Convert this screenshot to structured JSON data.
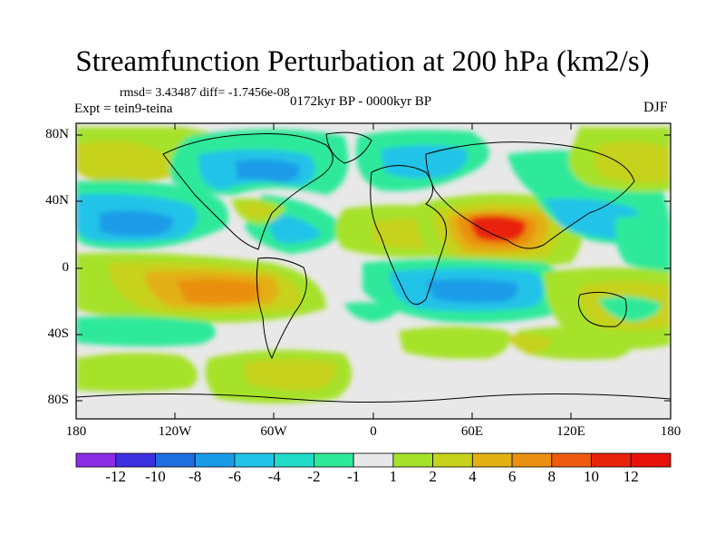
{
  "title": "Streamfunction Perturbation at 200 hPa (km2/s)",
  "stats": "rmsd= 3.43487 diff= -1.7456e-08",
  "expt": "Expt = tein9-teina",
  "period": "0172kyr BP - 0000kyr BP",
  "season": "DJF",
  "lat_labels": [
    "80N",
    "40N",
    "0",
    "40S",
    "80S"
  ],
  "lon_labels": [
    "180",
    "120W",
    "60W",
    "0",
    "60E",
    "120E",
    "180"
  ],
  "colorbar": {
    "labels": [
      "-12",
      "-10",
      "-8",
      "-6",
      "-4",
      "-2",
      "-1",
      "1",
      "2",
      "4",
      "6",
      "8",
      "10",
      "12"
    ],
    "colors": [
      "#8b2ee6",
      "#3c2fe0",
      "#1f6ee0",
      "#1a9be8",
      "#22c3e8",
      "#21dcc9",
      "#2ee99a",
      "#e8e8e8",
      "#a6e22c",
      "#c6d21c",
      "#e2b013",
      "#ea8f11",
      "#ee5a10",
      "#e8230c",
      "#e8120a"
    ]
  },
  "field_colors": {
    "neutral": "#e8e8e8",
    "neg_weak": "#2ee99a",
    "neg_mid": "#22c3e8",
    "neg_strong": "#1a9be8",
    "pos_weak": "#a6e22c",
    "pos_mid": "#c6d21c",
    "pos_strong": "#e2b013",
    "pos_high": "#ea8f11",
    "pos_peak": "#e8230c"
  }
}
